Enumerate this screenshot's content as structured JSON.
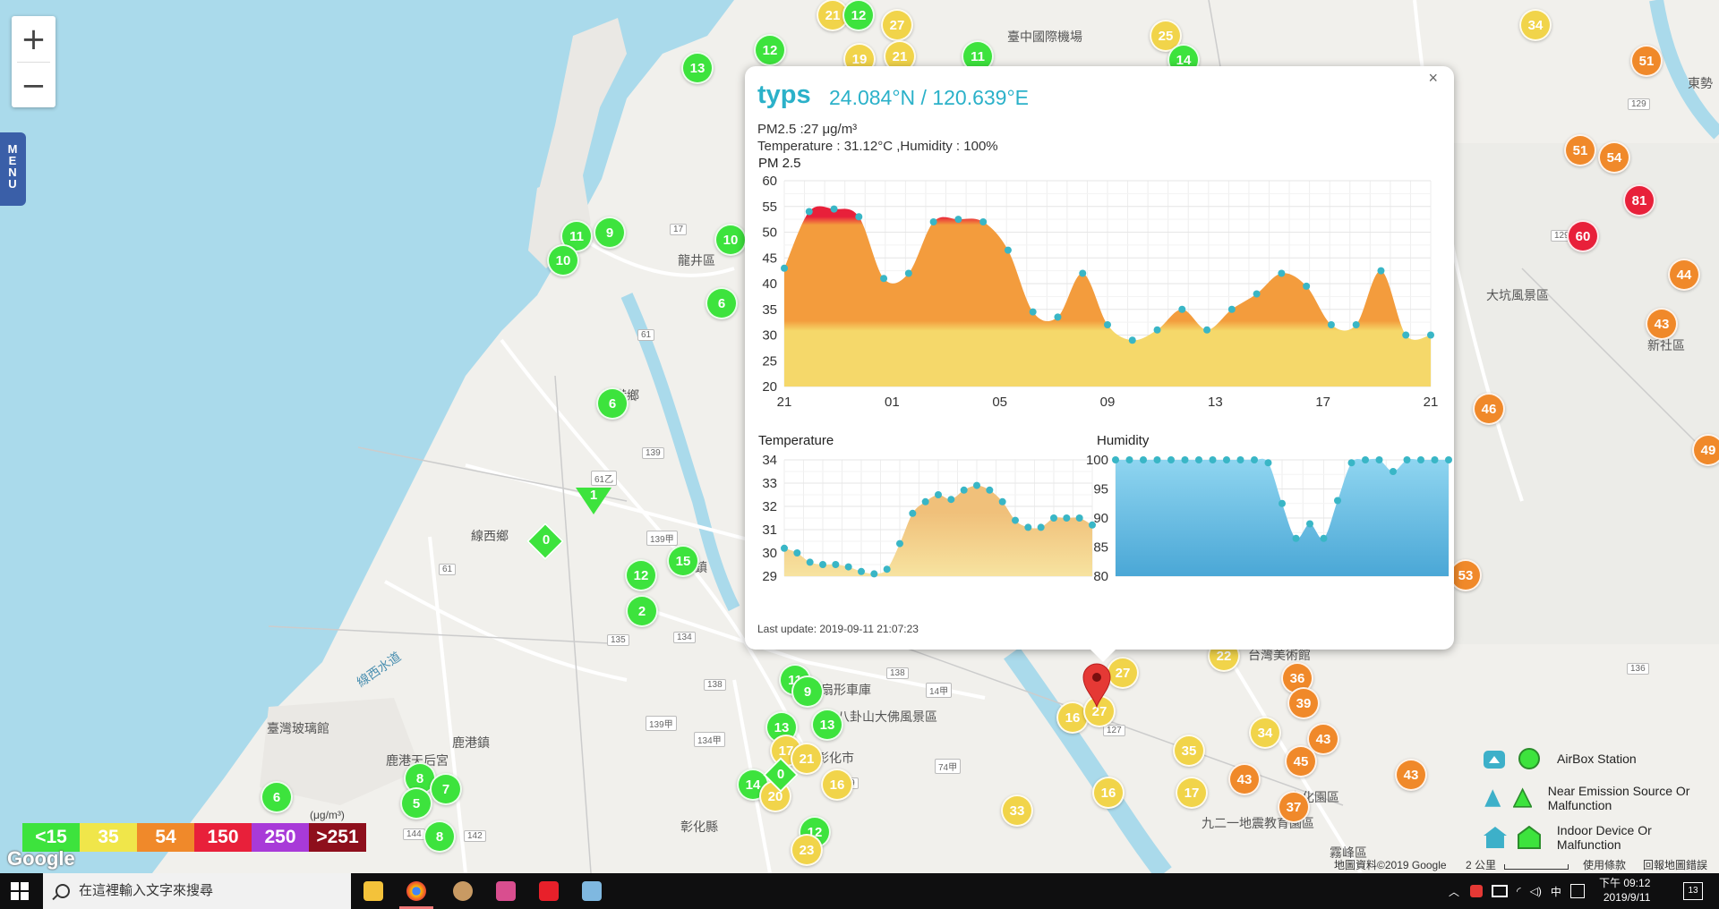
{
  "map": {
    "zoom_in": "+",
    "zoom_out": "−",
    "menu_label": "MENU",
    "place_labels": [
      {
        "text": "臺中國際機場"
      },
      {
        "text": "龍井區"
      },
      {
        "text": "線西鄉"
      },
      {
        "text": "伸港鄉"
      },
      {
        "text": "和美鎮"
      },
      {
        "text": "鹿港鎮"
      },
      {
        "text": "臺灣玻璃館"
      },
      {
        "text": "鹿港天后宮"
      },
      {
        "text": "彰化市"
      },
      {
        "text": "八卦山大佛風景區"
      },
      {
        "text": "彰化縣"
      },
      {
        "text": "扇形車庫"
      },
      {
        "text": "大坑風景區"
      },
      {
        "text": "新社區"
      },
      {
        "text": "東勢"
      },
      {
        "text": "霧峰區"
      },
      {
        "text": "九二一地震教育園區"
      },
      {
        "text": "台灣美術館"
      },
      {
        "text": "文化園區"
      },
      {
        "text": "線西水道"
      }
    ],
    "road_shields": [
      "139",
      "61乙",
      "139甲",
      "138",
      "135",
      "134",
      "134甲",
      "139甲",
      "138",
      "61",
      "17",
      "61",
      "14甲",
      "74甲",
      "127",
      "136",
      "129",
      "129",
      "136",
      "142",
      "144",
      "139"
    ],
    "stations": [
      {
        "v": "13",
        "c": "#3de33d"
      },
      {
        "v": "12",
        "c": "#3de33d"
      },
      {
        "v": "21",
        "c": "#f1d44a"
      },
      {
        "v": "12",
        "c": "#3de33d"
      },
      {
        "v": "27",
        "c": "#f1d44a"
      },
      {
        "v": "19",
        "c": "#f1d44a"
      },
      {
        "v": "21",
        "c": "#f1d44a"
      },
      {
        "v": "11",
        "c": "#3de33d"
      },
      {
        "v": "25",
        "c": "#f1d44a"
      },
      {
        "v": "14",
        "c": "#3de33d"
      },
      {
        "v": "34",
        "c": "#f1d44a"
      },
      {
        "v": "51",
        "c": "#f0892a"
      },
      {
        "v": "11",
        "c": "#3de33d"
      },
      {
        "v": "9",
        "c": "#3de33d"
      },
      {
        "v": "10",
        "c": "#3de33d"
      },
      {
        "v": "10",
        "c": "#3de33d"
      },
      {
        "v": "6",
        "c": "#3de33d"
      },
      {
        "v": "6",
        "c": "#3de33d"
      },
      {
        "v": "51",
        "c": "#f0892a"
      },
      {
        "v": "54",
        "c": "#f0892a"
      },
      {
        "v": "81",
        "c": "#e8203a"
      },
      {
        "v": "60",
        "c": "#e8203a"
      },
      {
        "v": "44",
        "c": "#f0892a"
      },
      {
        "v": "43",
        "c": "#f0892a"
      },
      {
        "v": "46",
        "c": "#f0892a"
      },
      {
        "v": "49",
        "c": "#f0892a"
      },
      {
        "v": "53",
        "c": "#f0892a"
      },
      {
        "v": "15",
        "c": "#3de33d"
      },
      {
        "v": "12",
        "c": "#3de33d"
      },
      {
        "v": "2",
        "c": "#3de33d"
      },
      {
        "v": "11",
        "c": "#3de33d"
      },
      {
        "v": "9",
        "c": "#3de33d"
      },
      {
        "v": "13",
        "c": "#3de33d"
      },
      {
        "v": "13",
        "c": "#3de33d"
      },
      {
        "v": "17",
        "c": "#f1d44a"
      },
      {
        "v": "21",
        "c": "#f1d44a"
      },
      {
        "v": "16",
        "c": "#f1d44a"
      },
      {
        "v": "14",
        "c": "#3de33d"
      },
      {
        "v": "20",
        "c": "#f1d44a"
      },
      {
        "v": "12",
        "c": "#3de33d"
      },
      {
        "v": "23",
        "c": "#f1d44a"
      },
      {
        "v": "33",
        "c": "#f1d44a"
      },
      {
        "v": "16",
        "c": "#f1d44a"
      },
      {
        "v": "27",
        "c": "#f1d44a"
      },
      {
        "v": "27",
        "c": "#f1d44a"
      },
      {
        "v": "16",
        "c": "#f1d44a"
      },
      {
        "v": "35",
        "c": "#f1d44a"
      },
      {
        "v": "17",
        "c": "#f1d44a"
      },
      {
        "v": "22",
        "c": "#f1d44a"
      },
      {
        "v": "36",
        "c": "#f0892a"
      },
      {
        "v": "39",
        "c": "#f0892a"
      },
      {
        "v": "34",
        "c": "#f1d44a"
      },
      {
        "v": "43",
        "c": "#f0892a"
      },
      {
        "v": "45",
        "c": "#f0892a"
      },
      {
        "v": "43",
        "c": "#f0892a"
      },
      {
        "v": "43",
        "c": "#f0892a"
      },
      {
        "v": "37",
        "c": "#f0892a"
      },
      {
        "v": "8",
        "c": "#3de33d"
      },
      {
        "v": "7",
        "c": "#3de33d"
      },
      {
        "v": "5",
        "c": "#3de33d"
      },
      {
        "v": "8",
        "c": "#3de33d"
      },
      {
        "v": "6",
        "c": "#3de33d"
      }
    ],
    "special_markers": [
      {
        "shape": "diamond",
        "v": "0"
      },
      {
        "shape": "triangle",
        "v": "1"
      },
      {
        "shape": "diamond",
        "v": "0"
      }
    ],
    "legend": {
      "unit": "(μg/m³)",
      "items": [
        {
          "label": "<15",
          "color": "#3de33d"
        },
        {
          "label": "35",
          "color": "#f0e64a"
        },
        {
          "label": "54",
          "color": "#f0892a"
        },
        {
          "label": "150",
          "color": "#e8203a"
        },
        {
          "label": "250",
          "color": "#a83ad8"
        },
        {
          "label": ">251",
          "color": "#8e0f1c"
        }
      ]
    },
    "device_legend": [
      {
        "label": "AirBox Station",
        "icon": "airbox-icon"
      },
      {
        "label": "Near Emission Source Or Malfunction",
        "icon": "emission-icon"
      },
      {
        "label": "Indoor Device Or Malfunction",
        "icon": "indoor-icon"
      }
    ],
    "footer": {
      "map_data": "地圖資料©2019 Google",
      "scale": "2 公里",
      "terms": "使用條款",
      "report": "回報地圖錯誤"
    },
    "google_logo": "Google"
  },
  "popup": {
    "close": "×",
    "title": "typs",
    "coords": "24.084°N / 120.639°E",
    "pm_line": "PM2.5 :27 μg/m³",
    "temp_line": "Temperature : 31.12°C ,Humidity : 100%",
    "last_update": "Last update: 2019-09-11 21:07:23"
  },
  "chart_data": [
    {
      "type": "area",
      "title": "PM 2.5",
      "x_ticks": [
        "21",
        "01",
        "05",
        "09",
        "13",
        "17",
        "21"
      ],
      "y_ticks": [
        20,
        25,
        30,
        35,
        40,
        45,
        50,
        55,
        60
      ],
      "ylim": [
        20,
        60
      ],
      "threshold": 32,
      "colors": {
        "below": "#f5d86a",
        "above": "#f39c3d",
        "peak": "#e8203a",
        "point": "#39b6c6"
      },
      "values": [
        43,
        54,
        54.5,
        53,
        41,
        42,
        52,
        52.5,
        52,
        46.5,
        34.5,
        33.5,
        42,
        32,
        29,
        31,
        35,
        31,
        35,
        38,
        42,
        39.5,
        32,
        32,
        42.5,
        30,
        30
      ]
    },
    {
      "type": "area",
      "title": "Temperature",
      "y_ticks": [
        29,
        30,
        31,
        32,
        33,
        34
      ],
      "ylim": [
        29,
        34
      ],
      "colors": {
        "low": "#f7e3a0",
        "high": "#f0c07a",
        "point": "#39b6c6"
      },
      "values": [
        30.2,
        30.0,
        29.6,
        29.5,
        29.5,
        29.4,
        29.2,
        29.1,
        29.3,
        30.4,
        31.7,
        32.2,
        32.5,
        32.3,
        32.7,
        32.9,
        32.7,
        32.2,
        31.4,
        31.1,
        31.1,
        31.5,
        31.5,
        31.5,
        31.2
      ]
    },
    {
      "type": "area",
      "title": "Humidity",
      "y_ticks": [
        80,
        85,
        90,
        95,
        100
      ],
      "ylim": [
        80,
        100
      ],
      "colors": {
        "fill_top": "#8fd5f0",
        "fill_bottom": "#4aa7d6",
        "point": "#39b6c6"
      },
      "values": [
        100,
        100,
        100,
        100,
        100,
        100,
        100,
        100,
        100,
        100,
        100,
        99.5,
        92.5,
        86.5,
        89,
        86.5,
        93,
        99.5,
        100,
        100,
        98,
        100,
        100,
        100,
        100
      ]
    }
  ],
  "taskbar": {
    "search_placeholder": "在這裡輸入文字來搜尋",
    "ime": "中",
    "time": "下午 09:12",
    "date": "2019/9/11",
    "notifications": "13"
  }
}
